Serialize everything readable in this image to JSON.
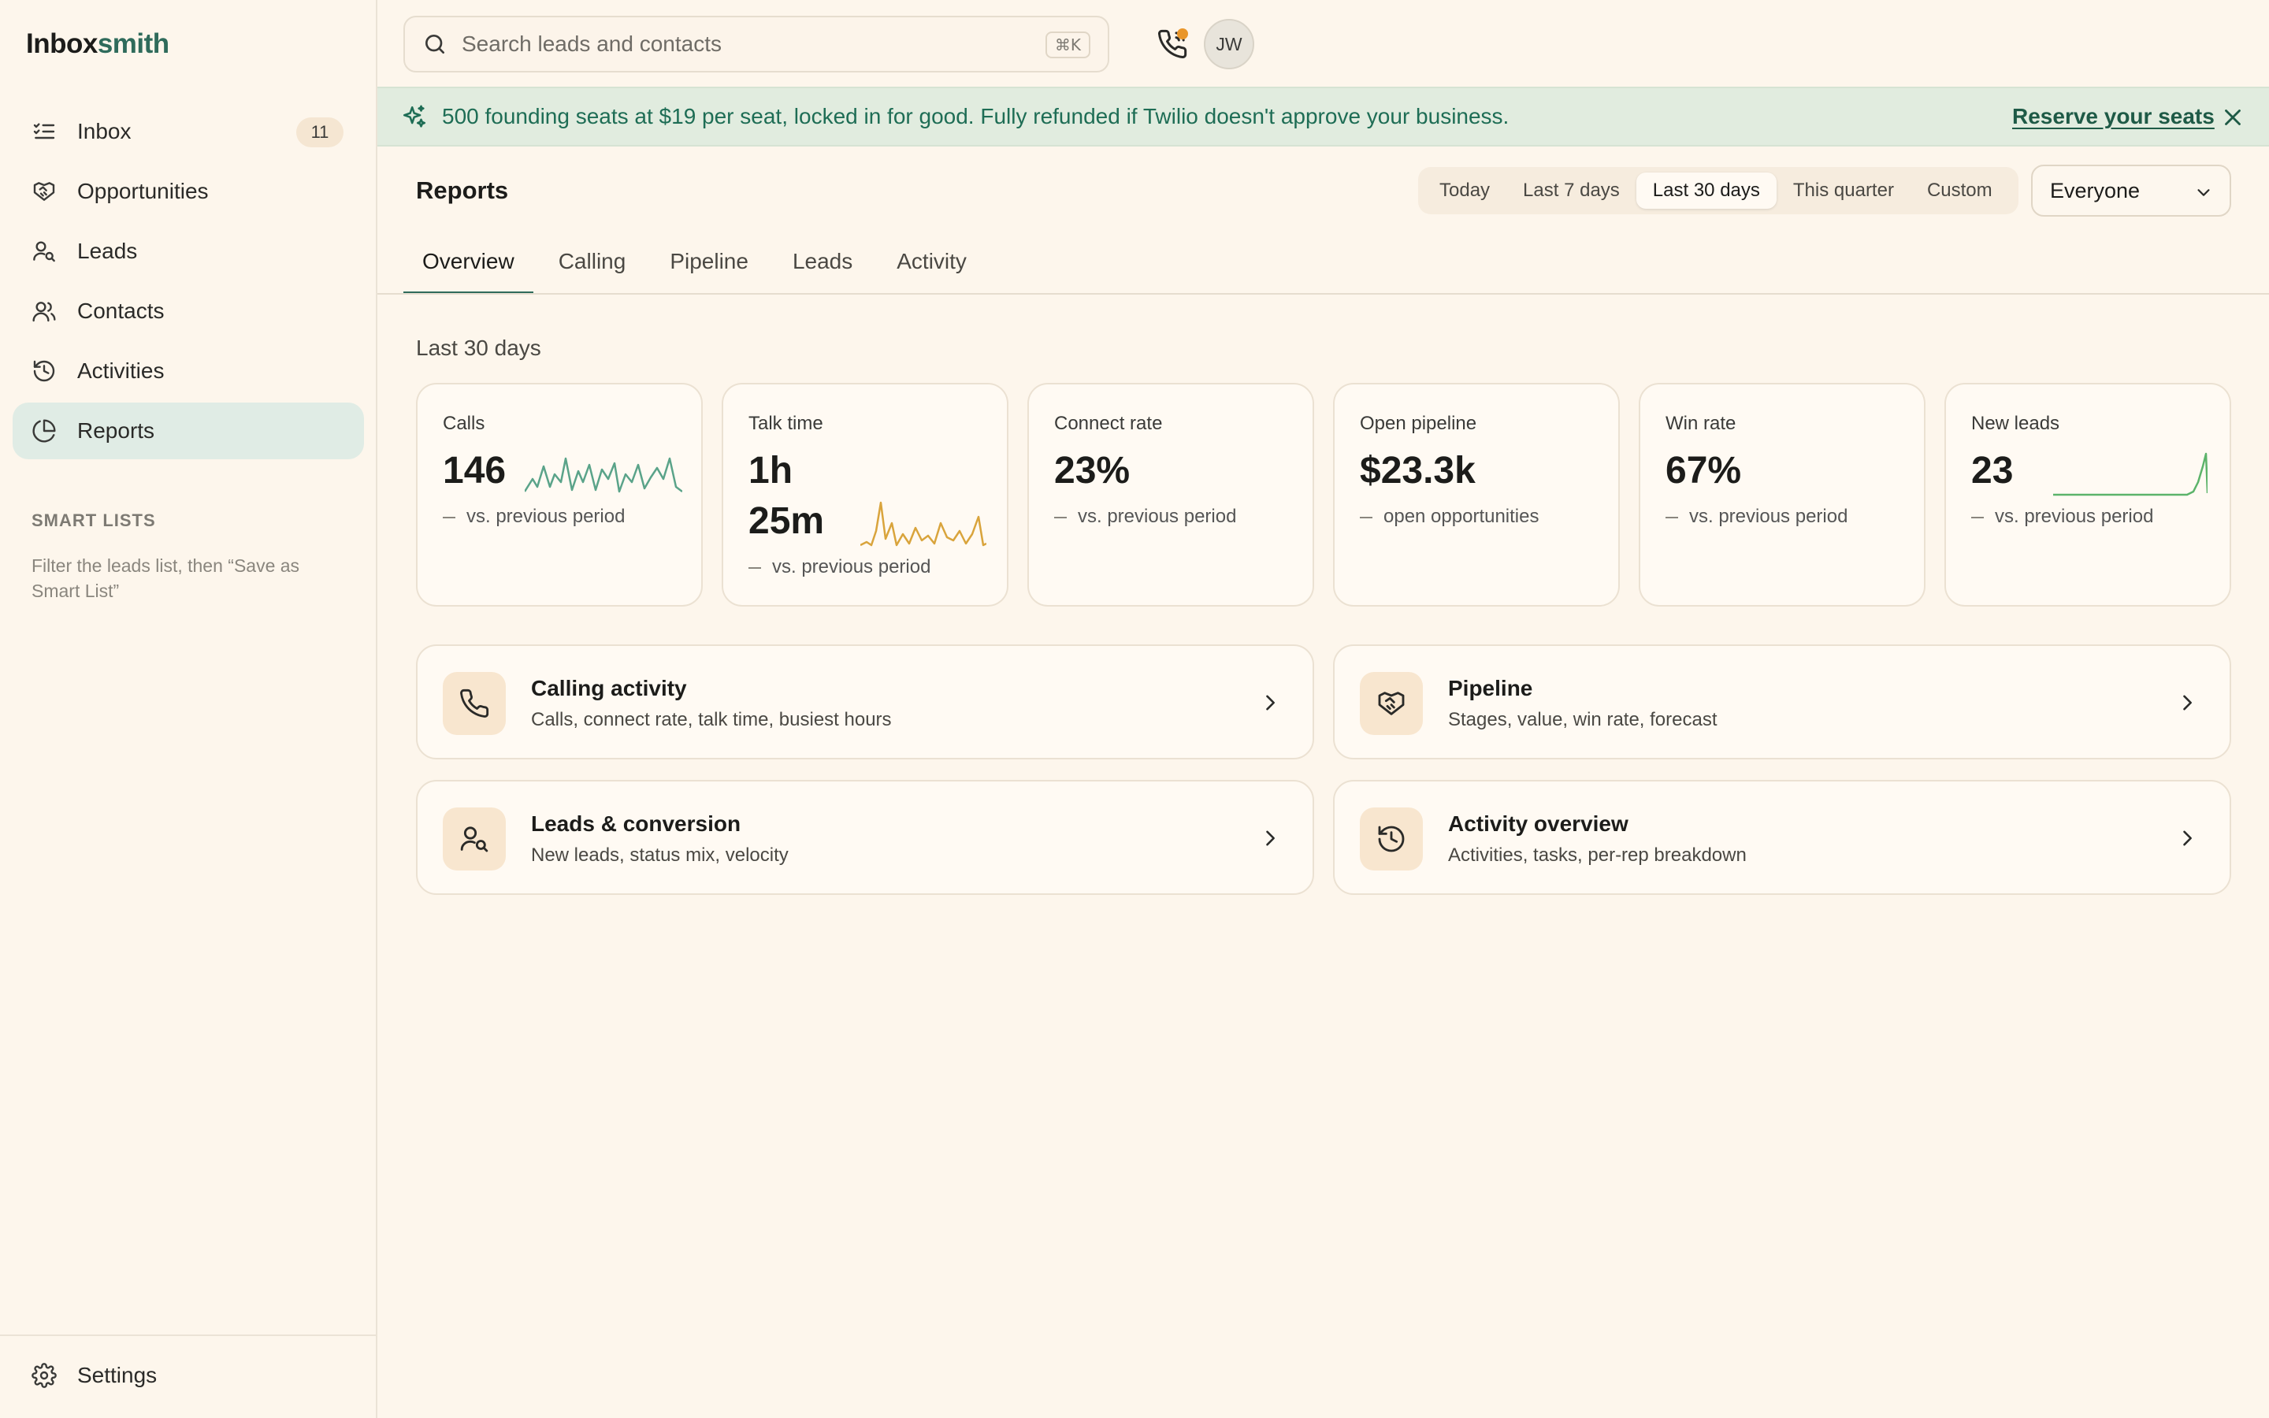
{
  "brand": {
    "part1": "Inbox",
    "part2": "smith"
  },
  "sidebar": {
    "items": [
      {
        "label": "Inbox",
        "badge": "11",
        "icon": "list-check-icon"
      },
      {
        "label": "Opportunities",
        "icon": "handshake-icon"
      },
      {
        "label": "Leads",
        "icon": "user-search-icon"
      },
      {
        "label": "Contacts",
        "icon": "users-icon"
      },
      {
        "label": "Activities",
        "icon": "history-icon"
      },
      {
        "label": "Reports",
        "icon": "pie-chart-icon",
        "active": true
      }
    ],
    "smart_lists_title": "SMART LISTS",
    "smart_lists_desc": "Filter the leads list, then “Save as Smart List”",
    "settings_label": "Settings"
  },
  "search": {
    "placeholder": "Search leads and contacts",
    "value": "",
    "shortcut": "⌘K"
  },
  "user": {
    "initials": "JW"
  },
  "banner": {
    "text": "500 founding seats at $19 per seat, locked in for good. Fully refunded if Twilio doesn't approve your business.",
    "link": "Reserve your seats"
  },
  "page": {
    "title": "Reports",
    "ranges": [
      "Today",
      "Last 7 days",
      "Last 30 days",
      "This quarter",
      "Custom"
    ],
    "active_range": "Last 30 days",
    "owner_filter": "Everyone",
    "tabs": [
      "Overview",
      "Calling",
      "Pipeline",
      "Leads",
      "Activity"
    ],
    "active_tab": "Overview",
    "period_label": "Last 30 days"
  },
  "metrics": [
    {
      "label": "Calls",
      "value": "146",
      "sub": "vs. previous period",
      "spark_color": "#5aa389"
    },
    {
      "label": "Talk time",
      "value_line1": "1h",
      "value_line2": "25m",
      "sub": "vs. previous period",
      "spark_color": "#d9a43c"
    },
    {
      "label": "Connect rate",
      "value": "23%",
      "sub": "vs. previous period"
    },
    {
      "label": "Open pipeline",
      "value": "$23.3k",
      "sub": "open opportunities"
    },
    {
      "label": "Win rate",
      "value": "67%",
      "sub": "vs. previous period"
    },
    {
      "label": "New leads",
      "value": "23",
      "sub": "vs. previous period",
      "spark_color": "#5cb36a"
    }
  ],
  "report_links": [
    {
      "title": "Calling activity",
      "desc": "Calls, connect rate, talk time, busiest hours",
      "icon": "phone-icon"
    },
    {
      "title": "Pipeline",
      "desc": "Stages, value, win rate, forecast",
      "icon": "handshake-icon"
    },
    {
      "title": "Leads & conversion",
      "desc": "New leads, status mix, velocity",
      "icon": "user-search-icon"
    },
    {
      "title": "Activity overview",
      "desc": "Activities, tasks, per-rep breakdown",
      "icon": "history-icon"
    }
  ],
  "colors": {
    "accent": "#2f6b5b",
    "banner_bg": "#e1ecdf",
    "banner_text": "#1e6d55",
    "notify_dot": "#e9962a"
  }
}
